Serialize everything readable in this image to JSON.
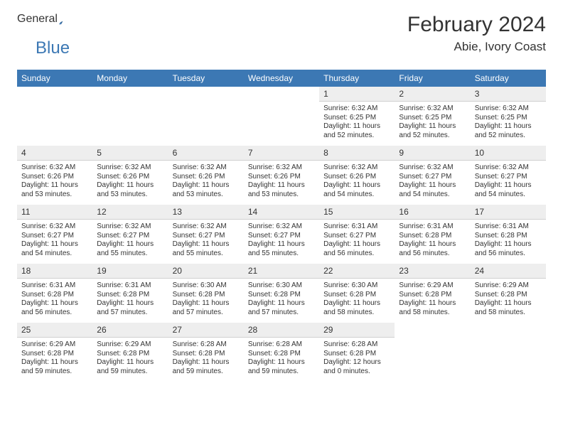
{
  "brand": {
    "general": "General",
    "blue": "Blue"
  },
  "title": "February 2024",
  "location": "Abie, Ivory Coast",
  "colors": {
    "header_bg": "#3c78b4",
    "header_fg": "#ffffff",
    "daynum_bg": "#eeeeee",
    "page_bg": "#ffffff",
    "text": "#333333"
  },
  "dayNames": [
    "Sunday",
    "Monday",
    "Tuesday",
    "Wednesday",
    "Thursday",
    "Friday",
    "Saturday"
  ],
  "weeks": [
    [
      {
        "n": "",
        "body": ""
      },
      {
        "n": "",
        "body": ""
      },
      {
        "n": "",
        "body": ""
      },
      {
        "n": "",
        "body": ""
      },
      {
        "n": "1",
        "body": "Sunrise: 6:32 AM\nSunset: 6:25 PM\nDaylight: 11 hours and 52 minutes."
      },
      {
        "n": "2",
        "body": "Sunrise: 6:32 AM\nSunset: 6:25 PM\nDaylight: 11 hours and 52 minutes."
      },
      {
        "n": "3",
        "body": "Sunrise: 6:32 AM\nSunset: 6:25 PM\nDaylight: 11 hours and 52 minutes."
      }
    ],
    [
      {
        "n": "4",
        "body": "Sunrise: 6:32 AM\nSunset: 6:26 PM\nDaylight: 11 hours and 53 minutes."
      },
      {
        "n": "5",
        "body": "Sunrise: 6:32 AM\nSunset: 6:26 PM\nDaylight: 11 hours and 53 minutes."
      },
      {
        "n": "6",
        "body": "Sunrise: 6:32 AM\nSunset: 6:26 PM\nDaylight: 11 hours and 53 minutes."
      },
      {
        "n": "7",
        "body": "Sunrise: 6:32 AM\nSunset: 6:26 PM\nDaylight: 11 hours and 53 minutes."
      },
      {
        "n": "8",
        "body": "Sunrise: 6:32 AM\nSunset: 6:26 PM\nDaylight: 11 hours and 54 minutes."
      },
      {
        "n": "9",
        "body": "Sunrise: 6:32 AM\nSunset: 6:27 PM\nDaylight: 11 hours and 54 minutes."
      },
      {
        "n": "10",
        "body": "Sunrise: 6:32 AM\nSunset: 6:27 PM\nDaylight: 11 hours and 54 minutes."
      }
    ],
    [
      {
        "n": "11",
        "body": "Sunrise: 6:32 AM\nSunset: 6:27 PM\nDaylight: 11 hours and 54 minutes."
      },
      {
        "n": "12",
        "body": "Sunrise: 6:32 AM\nSunset: 6:27 PM\nDaylight: 11 hours and 55 minutes."
      },
      {
        "n": "13",
        "body": "Sunrise: 6:32 AM\nSunset: 6:27 PM\nDaylight: 11 hours and 55 minutes."
      },
      {
        "n": "14",
        "body": "Sunrise: 6:32 AM\nSunset: 6:27 PM\nDaylight: 11 hours and 55 minutes."
      },
      {
        "n": "15",
        "body": "Sunrise: 6:31 AM\nSunset: 6:27 PM\nDaylight: 11 hours and 56 minutes."
      },
      {
        "n": "16",
        "body": "Sunrise: 6:31 AM\nSunset: 6:28 PM\nDaylight: 11 hours and 56 minutes."
      },
      {
        "n": "17",
        "body": "Sunrise: 6:31 AM\nSunset: 6:28 PM\nDaylight: 11 hours and 56 minutes."
      }
    ],
    [
      {
        "n": "18",
        "body": "Sunrise: 6:31 AM\nSunset: 6:28 PM\nDaylight: 11 hours and 56 minutes."
      },
      {
        "n": "19",
        "body": "Sunrise: 6:31 AM\nSunset: 6:28 PM\nDaylight: 11 hours and 57 minutes."
      },
      {
        "n": "20",
        "body": "Sunrise: 6:30 AM\nSunset: 6:28 PM\nDaylight: 11 hours and 57 minutes."
      },
      {
        "n": "21",
        "body": "Sunrise: 6:30 AM\nSunset: 6:28 PM\nDaylight: 11 hours and 57 minutes."
      },
      {
        "n": "22",
        "body": "Sunrise: 6:30 AM\nSunset: 6:28 PM\nDaylight: 11 hours and 58 minutes."
      },
      {
        "n": "23",
        "body": "Sunrise: 6:29 AM\nSunset: 6:28 PM\nDaylight: 11 hours and 58 minutes."
      },
      {
        "n": "24",
        "body": "Sunrise: 6:29 AM\nSunset: 6:28 PM\nDaylight: 11 hours and 58 minutes."
      }
    ],
    [
      {
        "n": "25",
        "body": "Sunrise: 6:29 AM\nSunset: 6:28 PM\nDaylight: 11 hours and 59 minutes."
      },
      {
        "n": "26",
        "body": "Sunrise: 6:29 AM\nSunset: 6:28 PM\nDaylight: 11 hours and 59 minutes."
      },
      {
        "n": "27",
        "body": "Sunrise: 6:28 AM\nSunset: 6:28 PM\nDaylight: 11 hours and 59 minutes."
      },
      {
        "n": "28",
        "body": "Sunrise: 6:28 AM\nSunset: 6:28 PM\nDaylight: 11 hours and 59 minutes."
      },
      {
        "n": "29",
        "body": "Sunrise: 6:28 AM\nSunset: 6:28 PM\nDaylight: 12 hours and 0 minutes."
      },
      {
        "n": "",
        "body": ""
      },
      {
        "n": "",
        "body": ""
      }
    ]
  ]
}
